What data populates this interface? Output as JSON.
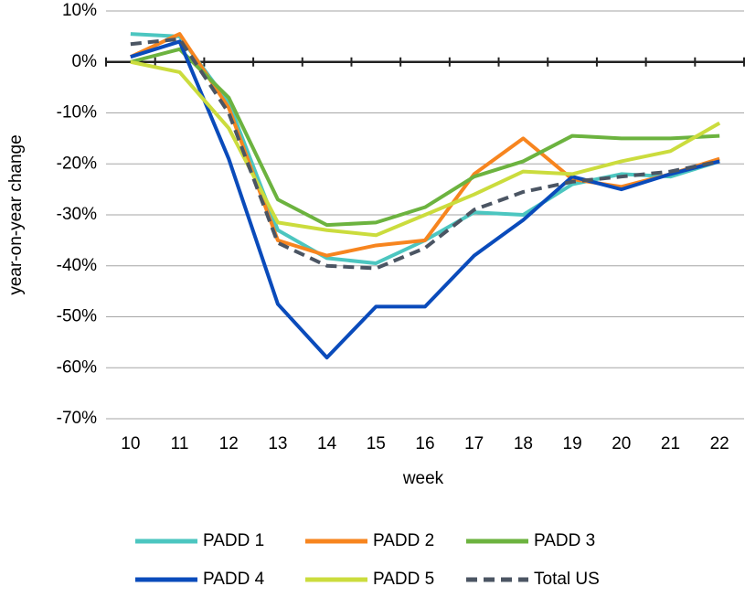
{
  "chart_data": {
    "type": "line",
    "x_label": "week",
    "y_label": "year-on-year change",
    "categories": [
      "10",
      "11",
      "12",
      "13",
      "14",
      "15",
      "16",
      "17",
      "18",
      "19",
      "20",
      "21",
      "22"
    ],
    "series": [
      {
        "name": "PADD 1",
        "color": "#4cc6c0",
        "values": [
          5.5,
          5,
          -8,
          -33,
          -38.5,
          -39.5,
          -35,
          -29.5,
          -30,
          -24,
          -22,
          -22.5,
          -19.5
        ]
      },
      {
        "name": "PADD 2",
        "color": "#f7851f",
        "values": [
          1,
          5.5,
          -9,
          -35,
          -38,
          -36,
          -35,
          -22,
          -15,
          -23,
          -24.5,
          -22,
          -19
        ]
      },
      {
        "name": "PADD 3",
        "color": "#6cb33f",
        "values": [
          0,
          2.5,
          -7,
          -27,
          -32,
          -31.5,
          -28.5,
          -22.5,
          -19.5,
          -14.5,
          -15,
          -15,
          -14.5
        ]
      },
      {
        "name": "PADD 4",
        "color": "#0a4bbb",
        "values": [
          1,
          4,
          -19,
          -47.5,
          -58,
          -48,
          -48,
          -38,
          -31,
          -22.5,
          -25,
          -22,
          -19.5
        ]
      },
      {
        "name": "PADD 5",
        "color": "#cbdc3d",
        "values": [
          0,
          -2,
          -13,
          -31.5,
          -33,
          -34,
          -30,
          -26,
          -21.5,
          -22,
          -19.5,
          -17.5,
          -12
        ]
      },
      {
        "name": "Total US",
        "color": "#4b5563",
        "dash": "dashed",
        "values": [
          3.5,
          4.5,
          -10,
          -35.5,
          -40,
          -40.5,
          -36.5,
          -29,
          -25.5,
          -23.5,
          -22.5,
          -21.5,
          -19.5
        ]
      }
    ],
    "ylim": [
      -70,
      10
    ],
    "yticks": [
      {
        "value": -70,
        "label": "-70%"
      },
      {
        "value": -60,
        "label": "-60%"
      },
      {
        "value": -50,
        "label": "-50%"
      },
      {
        "value": -40,
        "label": "-40%"
      },
      {
        "value": -30,
        "label": "-30%"
      },
      {
        "value": -20,
        "label": "-20%"
      },
      {
        "value": -10,
        "label": "-10%"
      },
      {
        "value": 0,
        "label": "0%"
      },
      {
        "value": 10,
        "label": "10%"
      }
    ],
    "grid": true,
    "legend": "bottom"
  }
}
